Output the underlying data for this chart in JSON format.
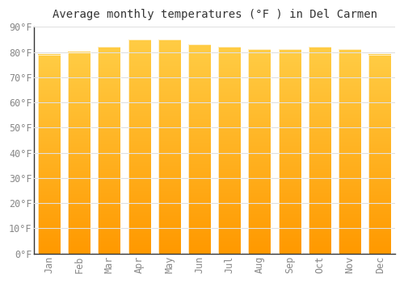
{
  "title": "Average monthly temperatures (°F ) in Del Carmen",
  "months": [
    "Jan",
    "Feb",
    "Mar",
    "Apr",
    "May",
    "Jun",
    "Jul",
    "Aug",
    "Sep",
    "Oct",
    "Nov",
    "Dec"
  ],
  "values": [
    79,
    80,
    82,
    85,
    85,
    83,
    82,
    81,
    81,
    82,
    81,
    79
  ],
  "bar_color_top": "#FFCC44",
  "bar_color_bottom": "#FF9900",
  "background_color": "#FFFFFF",
  "grid_color": "#E0E0E0",
  "ylim": [
    0,
    90
  ],
  "yticks": [
    0,
    10,
    20,
    30,
    40,
    50,
    60,
    70,
    80,
    90
  ],
  "ytick_labels": [
    "0°F",
    "10°F",
    "20°F",
    "30°F",
    "40°F",
    "50°F",
    "60°F",
    "70°F",
    "80°F",
    "90°F"
  ],
  "title_fontsize": 10,
  "tick_fontsize": 8.5,
  "tick_color": "#888888",
  "font_family": "monospace",
  "bar_width": 0.75
}
